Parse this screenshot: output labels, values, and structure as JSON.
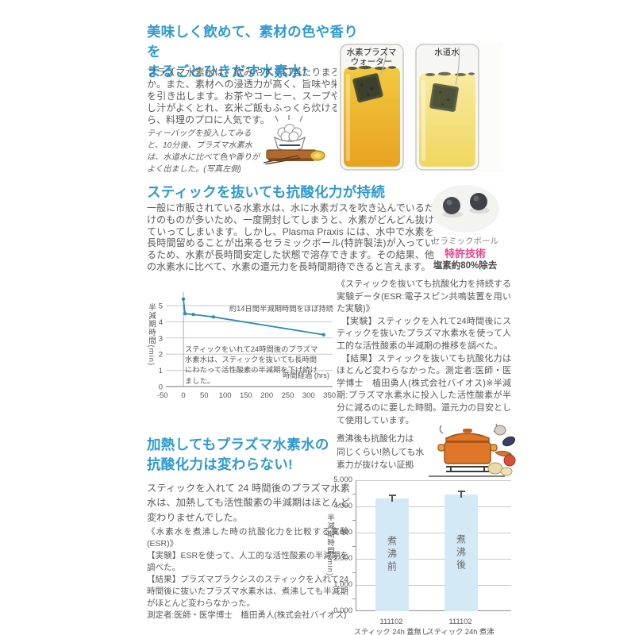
{
  "colors": {
    "accent": "#2f9ad2",
    "body_text": "#595959",
    "line_chart": "#2e8fb0",
    "bar_fill": "#d3e9f6",
    "patent_pink": "#e8478b"
  },
  "section_taste": {
    "heading": "美味しく飲めて、素材の色や香りを\nまるごとひきだす水素水!",
    "body": "プラズマ水素水は、飲みやすく口当たりまろやか。また、素材への浸透力が高く、旨味や栄養を引き出します。お茶やコーヒー、スープやだし汁がよくとれ、玄米ご飯もふっくら炊けるから、料理のプロに人気です。",
    "note": "ティーバッグを投入してみると、10分後、プラズマ水素水は、水道水に比べて色や香りがよく出ました。(写真左側)",
    "glass_left_label_1": "水素プラズマ",
    "glass_left_label_2": "ウォーター",
    "glass_right_label": "水道水"
  },
  "section_stick": {
    "heading": "スティックを抜いても抗酸化力が持続",
    "body": "一般に市販されている水素水は、水に水素ガスを吹き込んでいるだけのものが多いため、一度開封してしまうと、水素がどんどん抜けていってしまいます。しかし、Plasma Praxis には、水中で水素を長時間留めることが出来るセラミックボール(特許製法)が入っているため、水素が長時間安定した状態で溶存できます。その結果、他の水素水に比べて、水素の還元力を長時間期待できると言えます。",
    "ceramic_caption": "セラミックボール",
    "ceramic_patent": "特許技術",
    "ceramic_chlorine": "塩素約80%除去",
    "experiment_text": "《スティックを抜いても抗酸化力を持続する実験データ(ESR:電子スピン共鳴装置を用いた実験)》\n　【実験】スティックを入れて24時間後にスティックを抜いたプラズマ水素水を使って人工的な活性酸素の半減期の推移を調べた。\n　【結果】スティックを抜いても抗酸化力はほとんど変わらなかった。測定者:医師・医学博士　植田勇人(株式会社バイオス)※半減期:プラズマ水素水に投入した活性酸素が半分に減るのに要した時間。還元力の目安として使用しています。"
  },
  "section_heat": {
    "heading": "加熱してもプラズマ水素水の\n抗酸化力は変わらない!",
    "body": "スティックを入れて 24 時間後のプラズマ水素水は、加熱しても活性酸素の半減期はほとんど変わりませんでした。",
    "experiment_text": "《水素水を煮沸した時の抗酸化力を比較する実験(ESR)》\n【実験】ESRを使って、人工的な活性酸素の半減期を調べた。\n【結果】プラズマプラクシスのスティックを入れて24時間後に抜いたプラズマ水素水は、煮沸しても半減期がほとんど変わらなかった。\n測定者:医師・医学博士　植田勇人(株式会社バイオス)",
    "callout": "煮沸後も抗酸化力は\n同じくらい!熱しても水\n素力が抜けない証拠"
  },
  "chart_data": [
    {
      "type": "line",
      "title": "",
      "xlabel": "時間経過 (hrs)",
      "ylabel": "半減期時間(min)",
      "x": [
        0,
        4,
        24,
        72,
        336
      ],
      "y": [
        5.4,
        4.5,
        4.45,
        4.3,
        3.2
      ],
      "xlim": [
        -50,
        350
      ],
      "ylim": [
        0,
        5.8
      ],
      "xticks": [
        -50,
        0,
        50,
        100,
        150,
        200,
        250,
        300,
        350
      ],
      "yticks": [
        0,
        1,
        2,
        3,
        4,
        5
      ],
      "grid": true,
      "legend": "none",
      "annotation": "約14日間半減期時間をほぼ持続",
      "note": "スティックをいれて24時間後のプラズマ水素水は、スティックを抜いても長時間にわたって活性酸素の半減期を下げ続けました。"
    },
    {
      "type": "bar",
      "categories": [
        "111102\nスティック 24h 蓋無し",
        "111102\nスティック 24h 煮沸"
      ],
      "values": [
        4.3,
        4.45
      ],
      "errors": [
        0.15,
        0.15
      ],
      "bar_labels": [
        "煮沸前",
        "煮沸後"
      ],
      "ylabel": "半減期時間(min)",
      "ylim": [
        0,
        5
      ],
      "yticks": [
        "0.000",
        "1.000",
        "2.000",
        "3.000",
        "4.000",
        "5.000"
      ],
      "grid": true,
      "legend": "none"
    }
  ]
}
